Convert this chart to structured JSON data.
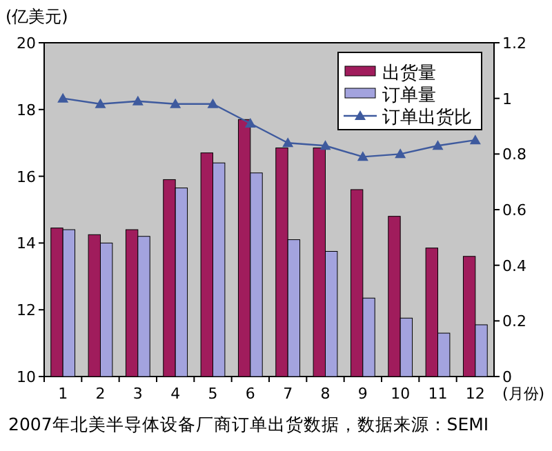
{
  "chart_data": {
    "type": "bar",
    "ylabel": "(亿美元)",
    "xlabel": "(月份)",
    "categories": [
      "1",
      "2",
      "3",
      "4",
      "5",
      "6",
      "7",
      "8",
      "9",
      "10",
      "11",
      "12"
    ],
    "series": [
      {
        "name": "出货量",
        "color": "#a01c5c",
        "values": [
          14.45,
          14.25,
          14.4,
          15.9,
          16.7,
          17.7,
          16.85,
          16.85,
          15.6,
          14.8,
          13.85,
          13.6
        ]
      },
      {
        "name": "订单量",
        "color": "#a3a3de",
        "values": [
          14.4,
          14.0,
          14.2,
          15.65,
          16.4,
          16.1,
          14.1,
          13.75,
          12.35,
          11.75,
          11.3,
          11.55
        ]
      },
      {
        "name": "订单出货比",
        "type": "line",
        "axis": "y2",
        "color": "#3e5a9e",
        "marker": "triangle",
        "values": [
          1.0,
          0.98,
          0.99,
          0.98,
          0.98,
          0.91,
          0.84,
          0.83,
          0.79,
          0.8,
          0.83,
          0.85
        ]
      }
    ],
    "ylim": [
      10,
      20
    ],
    "yticks": [
      10,
      12,
      14,
      16,
      18,
      20
    ],
    "y2lim": [
      0,
      1.2
    ],
    "y2ticks": [
      0,
      0.2,
      0.4,
      0.6,
      0.8,
      1,
      1.2
    ],
    "legend": "top right",
    "grid": false,
    "annotations": [
      "2007年北美半导体设备厂商订单出货数据，数据来源：SEMI"
    ]
  }
}
